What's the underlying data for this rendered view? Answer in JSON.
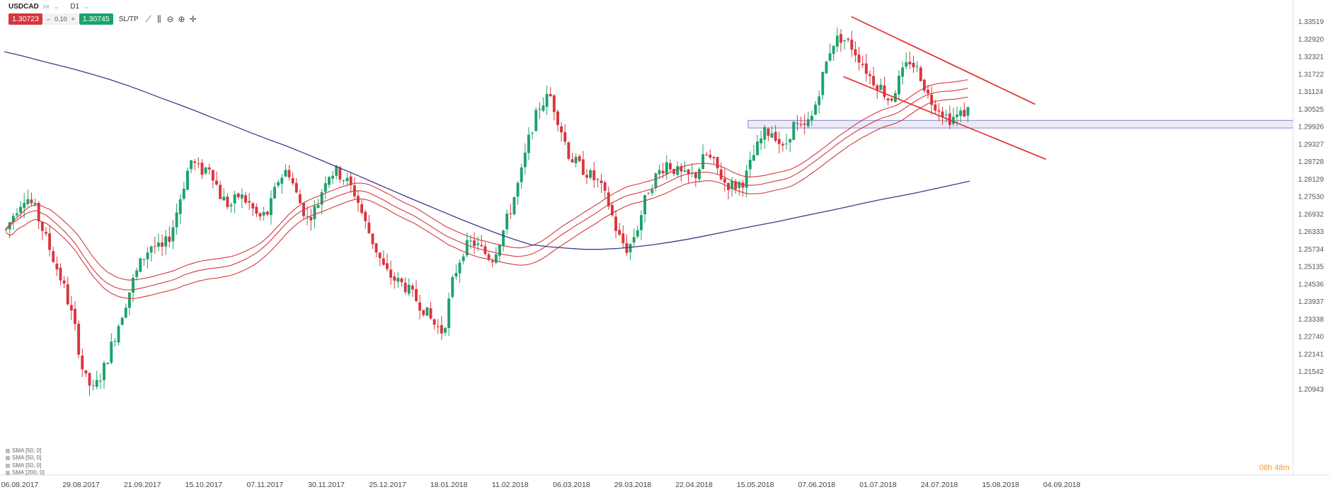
{
  "header": {
    "symbol": "USDCAD",
    "symbol_suffix": "xx",
    "timeframe": "D1"
  },
  "trade": {
    "sell_price": "1.30723",
    "volume": "0.10",
    "buy_price": "1.30745",
    "sltp_label": "SL/TP"
  },
  "timer": "08h 48m",
  "legend": [
    "SMA [50, 0]",
    "SMA [50, 0]",
    "SMA [50, 0]",
    "SMA [200, 0]"
  ],
  "colors": {
    "bull": "#1ba36c",
    "bear": "#d8363e",
    "band": "#d23a3a",
    "sma200": "#3b3a8f",
    "zone_fill": "#e6e3f5",
    "zone_stroke": "#8c86c8",
    "trendline": "#e23232"
  },
  "chart_data": {
    "type": "candlestick",
    "y_ticks": [
      "1.33519",
      "1.32920",
      "1.32321",
      "1.31722",
      "1.31124",
      "1.30525",
      "1.29926",
      "1.29327",
      "1.28728",
      "1.28129",
      "1.27530",
      "1.26932",
      "1.26333",
      "1.25734",
      "1.25135",
      "1.24536",
      "1.23937",
      "1.23338",
      "1.22740",
      "1.22141",
      "1.21542",
      "1.20943"
    ],
    "ylim": [
      1.2034,
      1.3382
    ],
    "x_labels": [
      "06.08.2017",
      "29.08.2017",
      "21.09.2017",
      "15.10.2017",
      "07.11.2017",
      "30.11.2017",
      "25.12.2017",
      "18.01.2018",
      "11.02.2018",
      "06.03.2018",
      "29.03.2018",
      "22.04.2018",
      "15.05.2018",
      "07.06.2018",
      "01.07.2018",
      "24.07.2018",
      "15.08.2018",
      "04.09.2018"
    ],
    "close_path": [
      1.264,
      1.271,
      1.276,
      1.271,
      1.262,
      1.253,
      1.244,
      1.232,
      1.214,
      1.209,
      1.216,
      1.226,
      1.236,
      1.246,
      1.254,
      1.259,
      1.257,
      1.263,
      1.276,
      1.288,
      1.284,
      1.286,
      1.276,
      1.272,
      1.276,
      1.273,
      1.268,
      1.27,
      1.281,
      1.285,
      1.275,
      1.268,
      1.272,
      1.283,
      1.284,
      1.281,
      1.276,
      1.266,
      1.258,
      1.25,
      1.247,
      1.245,
      1.241,
      1.237,
      1.232,
      1.229,
      1.247,
      1.257,
      1.26,
      1.257,
      1.254,
      1.262,
      1.272,
      1.283,
      1.298,
      1.307,
      1.31,
      1.3,
      1.289,
      1.286,
      1.283,
      1.28,
      1.273,
      1.262,
      1.257,
      1.265,
      1.277,
      1.283,
      1.287,
      1.284,
      1.282,
      1.283,
      1.29,
      1.286,
      1.28,
      1.279,
      1.281,
      1.29,
      1.297,
      1.298,
      1.291,
      1.3,
      1.298,
      1.303,
      1.316,
      1.328,
      1.33,
      1.327,
      1.322,
      1.316,
      1.313,
      1.308,
      1.316,
      1.322,
      1.318,
      1.309,
      1.306,
      1.302,
      1.303,
      1.305
    ],
    "sma200": [
      1.325,
      1.3236,
      1.322,
      1.3205,
      1.319,
      1.3173,
      1.3155,
      1.3135,
      1.3113,
      1.309,
      1.3068,
      1.3045,
      1.3021,
      1.2998,
      1.2974,
      1.2951,
      1.2929,
      1.2905,
      1.288,
      1.2855,
      1.283,
      1.2804,
      1.2778,
      1.2752,
      1.2727,
      1.2702,
      1.2677,
      1.2653,
      1.263,
      1.2609,
      1.259,
      1.2583,
      1.2578,
      1.2574,
      1.2574,
      1.2577,
      1.2583,
      1.259,
      1.2599,
      1.2609,
      1.2621,
      1.2633,
      1.2645,
      1.2657,
      1.2668,
      1.2681,
      1.2694,
      1.2706,
      1.2719,
      1.2732,
      1.2745,
      1.2756,
      1.2768,
      1.2781,
      1.2794,
      1.2807
    ],
    "bands": {
      "upper": "SMA 50 (high)",
      "middle": "SMA 50 (close)",
      "lower": "SMA 50 (low)"
    },
    "horizontal_zone": [
      1.2989,
      1.3015
    ],
    "trendlines": [
      {
        "from": [
          "2018-06-14",
          1.337
        ],
        "to": [
          "2018-08-22",
          1.307
        ]
      },
      {
        "from": [
          "2018-06-11",
          1.3165
        ],
        "to": [
          "2018-08-26",
          1.2882
        ]
      }
    ]
  }
}
